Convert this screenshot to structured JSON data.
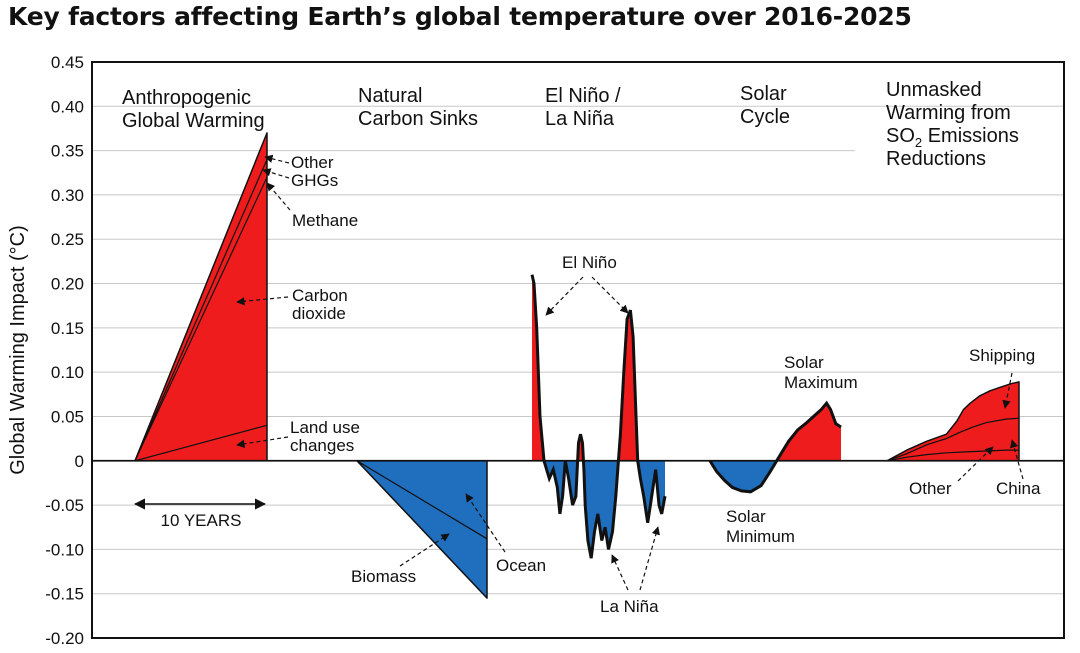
{
  "chart_data": {
    "type": "area",
    "title": "Key factors affecting Earth’s global temperature over 2016-2025",
    "xlabel": "",
    "ylabel": "Global Warming Impact (°C)",
    "ylim": [
      -0.2,
      0.45
    ],
    "y_ticks": [
      "0.45",
      "0.40",
      "0.35",
      "0.30",
      "0.25",
      "0.20",
      "0.15",
      "0.10",
      "0.05",
      "0",
      "-0.05",
      "-0.10",
      "-0.15",
      "-0.20"
    ],
    "grid": true,
    "scale_bar": "10 YEARS",
    "sections": [
      {
        "name": "Anthropogenic Global Warming",
        "lines": [
          "Anthropogenic",
          "Global Warming"
        ]
      },
      {
        "name": "Natural Carbon Sinks",
        "lines": [
          "Natural",
          "Carbon Sinks"
        ]
      },
      {
        "name": "El Niño / La Niña",
        "lines": [
          "El Niño /",
          "La Niña"
        ]
      },
      {
        "name": "Solar Cycle",
        "lines": [
          "Solar",
          "Cycle"
        ]
      },
      {
        "name": "Unmasked Warming from SO2 Emissions Reductions",
        "lines": [
          "Unmasked",
          "Warming from",
          "SO",
          "2",
          " Emissions",
          "Reductions"
        ]
      }
    ],
    "series": [
      {
        "name": "Land use changes",
        "group": "Anthropogenic Global Warming",
        "x": [
          0,
          10
        ],
        "values": [
          0.0,
          0.04
        ]
      },
      {
        "name": "Carbon dioxide",
        "group": "Anthropogenic Global Warming",
        "x": [
          0,
          10
        ],
        "values": [
          0.0,
          0.32
        ]
      },
      {
        "name": "Methane",
        "group": "Anthropogenic Global Warming",
        "x": [
          0,
          10
        ],
        "values": [
          0.0,
          0.34
        ]
      },
      {
        "name": "Other GHGs",
        "group": "Anthropogenic Global Warming",
        "x": [
          0,
          10
        ],
        "values": [
          0.0,
          0.37
        ]
      },
      {
        "name": "Ocean",
        "group": "Natural Carbon Sinks",
        "x": [
          0,
          10
        ],
        "values": [
          0.0,
          -0.088
        ]
      },
      {
        "name": "Biomass",
        "group": "Natural Carbon Sinks",
        "x": [
          0,
          10
        ],
        "values": [
          0.0,
          -0.155
        ]
      },
      {
        "name": "El Niño / La Niña",
        "group": "El Niño / La Niña",
        "x": [
          0,
          0.15,
          0.35,
          0.6,
          0.9,
          1.3,
          1.6,
          1.9,
          2.1,
          2.3,
          2.5,
          2.75,
          3.05,
          3.3,
          3.5,
          3.65,
          3.8,
          3.9,
          4.0,
          4.2,
          4.45,
          4.7,
          4.95,
          5.25,
          5.5,
          5.75,
          6.05,
          6.3,
          6.65,
          6.9,
          7.15,
          7.4,
          7.6,
          7.8,
          7.95,
          8.15,
          8.4,
          8.7,
          8.9,
          9.1,
          9.3,
          9.55,
          9.75,
          10
        ],
        "values": [
          0.21,
          0.2,
          0.15,
          0.05,
          0.0,
          -0.02,
          -0.01,
          -0.03,
          -0.06,
          -0.04,
          0.0,
          -0.02,
          -0.05,
          -0.04,
          0.02,
          0.03,
          0.02,
          -0.01,
          -0.05,
          -0.09,
          -0.11,
          -0.08,
          -0.06,
          -0.09,
          -0.075,
          -0.1,
          -0.08,
          -0.04,
          0.03,
          0.1,
          0.16,
          0.17,
          0.14,
          0.06,
          0.0,
          -0.02,
          -0.04,
          -0.07,
          -0.05,
          -0.03,
          -0.01,
          -0.05,
          -0.06,
          -0.04
        ]
      },
      {
        "name": "Solar Cycle",
        "group": "Solar Cycle",
        "x": [
          0,
          0.5,
          1.1,
          1.7,
          2.4,
          3.1,
          3.9,
          4.6,
          5.3,
          6.0,
          6.7,
          7.3,
          7.9,
          8.5,
          8.9,
          9.2,
          9.6,
          10
        ],
        "values": [
          0.0,
          -0.012,
          -0.022,
          -0.03,
          -0.034,
          -0.035,
          -0.028,
          -0.012,
          0.005,
          0.022,
          0.035,
          0.042,
          0.05,
          0.058,
          0.065,
          0.058,
          0.042,
          0.038
        ]
      },
      {
        "name": "China",
        "group": "Unmasked Warming from SO2 Emissions Reductions",
        "x": [
          0,
          1.5,
          3,
          4.5,
          6,
          7.5,
          9,
          10
        ],
        "values": [
          0.0,
          0.004,
          0.007,
          0.009,
          0.01,
          0.011,
          0.012,
          0.012
        ]
      },
      {
        "name": "Other",
        "group": "Unmasked Warming from SO2 Emissions Reductions",
        "x": [
          0,
          1.5,
          3,
          4.5,
          5.5,
          6.5,
          7.5,
          9,
          10
        ],
        "values": [
          0.0,
          0.008,
          0.018,
          0.025,
          0.032,
          0.038,
          0.043,
          0.047,
          0.048
        ]
      },
      {
        "name": "Shipping",
        "group": "Unmasked Warming from SO2 Emissions Reductions",
        "x": [
          0,
          1.5,
          3,
          4.5,
          5.3,
          5.8,
          6.3,
          7,
          7.8,
          8.6,
          9.4,
          10
        ],
        "values": [
          0.0,
          0.012,
          0.022,
          0.03,
          0.045,
          0.058,
          0.065,
          0.073,
          0.079,
          0.083,
          0.087,
          0.089
        ]
      }
    ],
    "annotations": [
      {
        "text": [
          "Other",
          "GHGs"
        ],
        "target": "Other GHGs"
      },
      {
        "text": [
          "Methane"
        ],
        "target": "Methane"
      },
      {
        "text": [
          "Carbon",
          "dioxide"
        ],
        "target": "Carbon dioxide"
      },
      {
        "text": [
          "Land use",
          "changes"
        ],
        "target": "Land use changes"
      },
      {
        "text": [
          "Biomass"
        ],
        "target": "Biomass"
      },
      {
        "text": [
          "Ocean"
        ],
        "target": "Ocean"
      },
      {
        "text": [
          "El Niño"
        ],
        "target": "El Niño peaks"
      },
      {
        "text": [
          "La Niña"
        ],
        "target": "La Niña troughs"
      },
      {
        "text": [
          "Solar",
          "Maximum"
        ],
        "target": "Solar Cycle peak"
      },
      {
        "text": [
          "Solar",
          "Minimum"
        ],
        "target": "Solar Cycle trough"
      },
      {
        "text": [
          "Shipping"
        ],
        "target": "Shipping"
      },
      {
        "text": [
          "Other"
        ],
        "target": "Other"
      },
      {
        "text": [
          "China"
        ],
        "target": "China"
      }
    ],
    "colors": {
      "positive": "#ee1c1c",
      "negative": "#1f6fbe",
      "outline": "#111111",
      "grid": "#c8c8c8"
    }
  }
}
